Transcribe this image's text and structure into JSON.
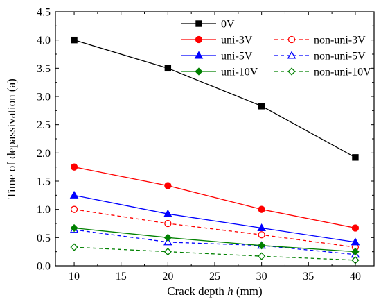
{
  "chart_data": {
    "type": "line",
    "title": "",
    "xlabel": "Crack depth",
    "xlabel_var": "h",
    "xlabel_unit": "(mm)",
    "ylabel": "Time of depassivation (a)",
    "xlim": [
      8,
      42
    ],
    "ylim": [
      0,
      4.5
    ],
    "xticks": [
      10,
      15,
      20,
      25,
      30,
      35,
      40
    ],
    "yticks": [
      0.0,
      0.5,
      1.0,
      1.5,
      2.0,
      2.5,
      3.0,
      3.5,
      4.0,
      4.5
    ],
    "x": [
      10,
      20,
      30,
      40
    ],
    "grid": false,
    "legend_position": "top-right",
    "series": [
      {
        "name": "0V",
        "values": [
          4.0,
          3.5,
          2.83,
          1.92
        ],
        "color": "#000000",
        "dash": "solid",
        "marker": "square",
        "fill": "filled"
      },
      {
        "name": "uni-3V",
        "values": [
          1.75,
          1.42,
          1.0,
          0.67
        ],
        "color": "#ff0000",
        "dash": "solid",
        "marker": "circle",
        "fill": "filled"
      },
      {
        "name": "non-uni-3V",
        "values": [
          1.0,
          0.75,
          0.55,
          0.33
        ],
        "color": "#ff0000",
        "dash": "dashed",
        "marker": "circle",
        "fill": "open"
      },
      {
        "name": "uni-5V",
        "values": [
          1.25,
          0.92,
          0.67,
          0.42
        ],
        "color": "#0000ff",
        "dash": "solid",
        "marker": "triangle",
        "fill": "filled"
      },
      {
        "name": "non-uni-5V",
        "values": [
          0.64,
          0.42,
          0.36,
          0.2
        ],
        "color": "#0000ff",
        "dash": "dashed",
        "marker": "triangle",
        "fill": "open"
      },
      {
        "name": "uni-10V",
        "values": [
          0.67,
          0.5,
          0.36,
          0.25
        ],
        "color": "#008000",
        "dash": "solid",
        "marker": "diamond",
        "fill": "filled"
      },
      {
        "name": "non-uni-10V",
        "values": [
          0.33,
          0.25,
          0.17,
          0.1
        ],
        "color": "#008000",
        "dash": "dashed",
        "marker": "diamond",
        "fill": "open"
      }
    ]
  }
}
